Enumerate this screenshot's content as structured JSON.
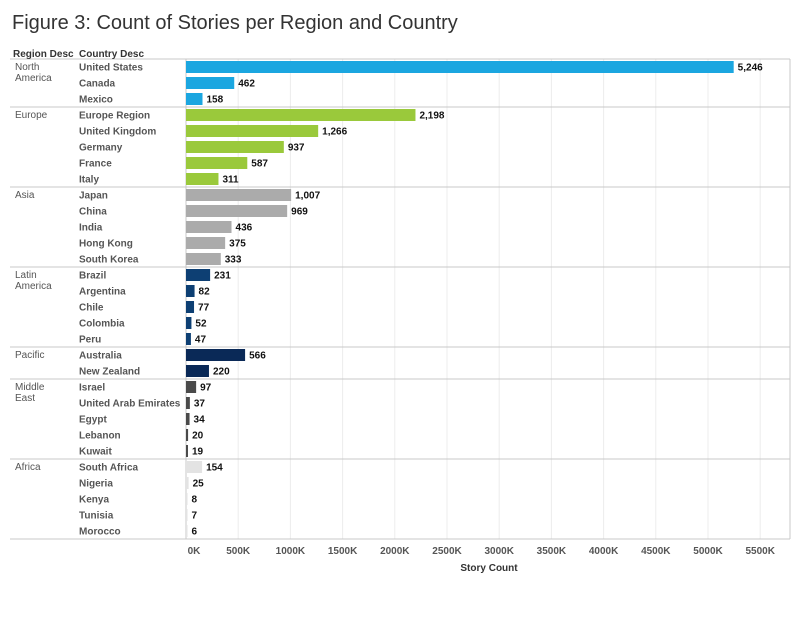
{
  "title": "Figure 3: Count of Stories per Region and Country",
  "headers": {
    "region": "Region Desc",
    "country": "Country Desc"
  },
  "colors": {
    "North America": "#1ba6e0",
    "Europe": "#9ac93b",
    "Asia": "#ababab",
    "Latin America": "#0d3f73",
    "Pacific": "#0a2957",
    "Middle East": "#4a4a4a",
    "Africa": "#e3e3e3"
  },
  "chart_data": {
    "type": "bar",
    "orientation": "horizontal",
    "title": "Figure 3: Count of Stories per Region and Country",
    "xlabel": "Story Count",
    "xlim": [
      0,
      5500000
    ],
    "xticks": [
      "0K",
      "500K",
      "1000K",
      "1500K",
      "2000K",
      "2500K",
      "3000K",
      "3500K",
      "4000K",
      "4500K",
      "5000K",
      "5500K"
    ],
    "grid": true,
    "groups": [
      {
        "region": "North America",
        "countries": [
          {
            "name": "United States",
            "value": 5246,
            "label": "5,246"
          },
          {
            "name": "Canada",
            "value": 462,
            "label": "462"
          },
          {
            "name": "Mexico",
            "value": 158,
            "label": "158"
          }
        ]
      },
      {
        "region": "Europe",
        "countries": [
          {
            "name": "Europe Region",
            "value": 2198,
            "label": "2,198"
          },
          {
            "name": "United Kingdom",
            "value": 1266,
            "label": "1,266"
          },
          {
            "name": "Germany",
            "value": 937,
            "label": "937"
          },
          {
            "name": "France",
            "value": 587,
            "label": "587"
          },
          {
            "name": "Italy",
            "value": 311,
            "label": "311"
          }
        ]
      },
      {
        "region": "Asia",
        "countries": [
          {
            "name": "Japan",
            "value": 1007,
            "label": "1,007"
          },
          {
            "name": "China",
            "value": 969,
            "label": "969"
          },
          {
            "name": "India",
            "value": 436,
            "label": "436"
          },
          {
            "name": "Hong Kong",
            "value": 375,
            "label": "375"
          },
          {
            "name": "South Korea",
            "value": 333,
            "label": "333"
          }
        ]
      },
      {
        "region": "Latin America",
        "countries": [
          {
            "name": "Brazil",
            "value": 231,
            "label": "231"
          },
          {
            "name": "Argentina",
            "value": 82,
            "label": "82"
          },
          {
            "name": "Chile",
            "value": 77,
            "label": "77"
          },
          {
            "name": "Colombia",
            "value": 52,
            "label": "52"
          },
          {
            "name": "Peru",
            "value": 47,
            "label": "47"
          }
        ]
      },
      {
        "region": "Pacific",
        "countries": [
          {
            "name": "Australia",
            "value": 566,
            "label": "566"
          },
          {
            "name": "New Zealand",
            "value": 220,
            "label": "220"
          }
        ]
      },
      {
        "region": "Middle East",
        "countries": [
          {
            "name": "Israel",
            "value": 97,
            "label": "97"
          },
          {
            "name": "United Arab Emirates",
            "value": 37,
            "label": "37"
          },
          {
            "name": "Egypt",
            "value": 34,
            "label": "34"
          },
          {
            "name": "Lebanon",
            "value": 20,
            "label": "20"
          },
          {
            "name": "Kuwait",
            "value": 19,
            "label": "19"
          }
        ]
      },
      {
        "region": "Africa",
        "countries": [
          {
            "name": "South Africa",
            "value": 154,
            "label": "154"
          },
          {
            "name": "Nigeria",
            "value": 25,
            "label": "25"
          },
          {
            "name": "Kenya",
            "value": 8,
            "label": "8"
          },
          {
            "name": "Tunisia",
            "value": 7,
            "label": "7"
          },
          {
            "name": "Morocco",
            "value": 6,
            "label": "6"
          }
        ]
      }
    ]
  }
}
